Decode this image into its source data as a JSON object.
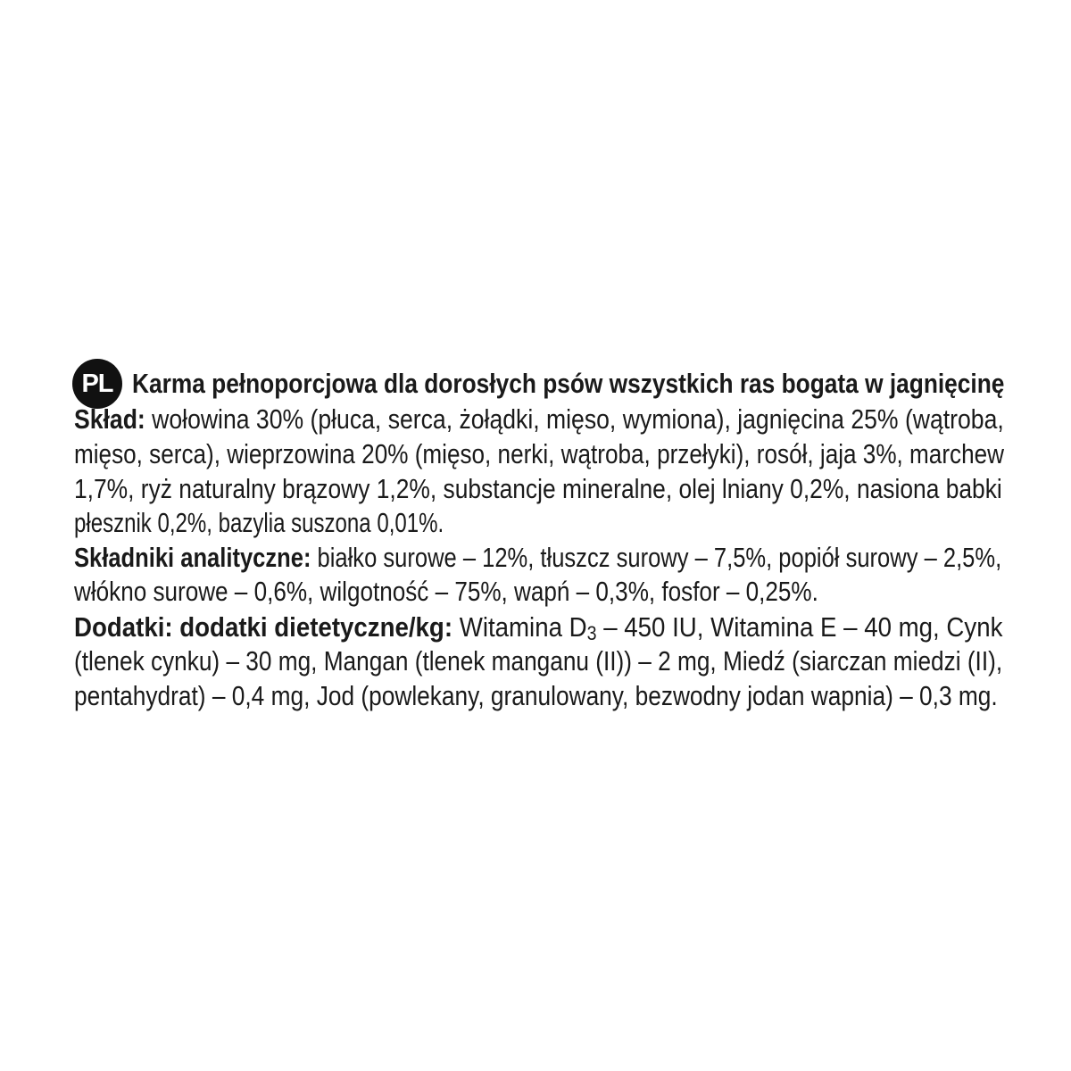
{
  "language_badge": "PL",
  "title": "Karma pełnoporcjowa dla dorosłych psów wszystkich ras bogata w jagnięcinę",
  "composition": {
    "label": "Skład:",
    "lines": [
      " wołowina 30% (płuca, serca, żołądki, mięso, wymiona), jagnięcina 25% (wątroba,",
      "mięso, serca), wieprzowina 20% (mięso, nerki, wątroba, przełyki), rosół, jaja 3%, marchew",
      "1,7%, ryż naturalny brązowy 1,2%, substancje mineralne, olej lniany 0,2%, nasiona babki",
      "płesznik 0,2%, bazylia suszona 0,01%."
    ]
  },
  "analytical": {
    "label": "Składniki analityczne:",
    "lines": [
      " białko surowe – 12%, tłuszcz surowy – 7,5%, popiół surowy – 2,5%,",
      "włókno surowe – 0,6%, wilgotność – 75%, wapń – 0,3%, fosfor – 0,25%."
    ]
  },
  "additives": {
    "label": "Dodatki: dodatki dietetyczne/kg:",
    "line1_before_sub": " Witamina D",
    "line1_sub": "3",
    "line1_after_sub": " – 450 IU, Witamina E – 40 mg, Cynk",
    "lines": [
      "(tlenek cynku) – 30 mg, Mangan (tlenek manganu (II)) – 2 mg, Miedź (siarczan miedzi (II),",
      "pentahydrat) – 0,4 mg, Jod (powlekany, granulowany, bezwodny jodan wapnia) – 0,3 mg."
    ]
  }
}
